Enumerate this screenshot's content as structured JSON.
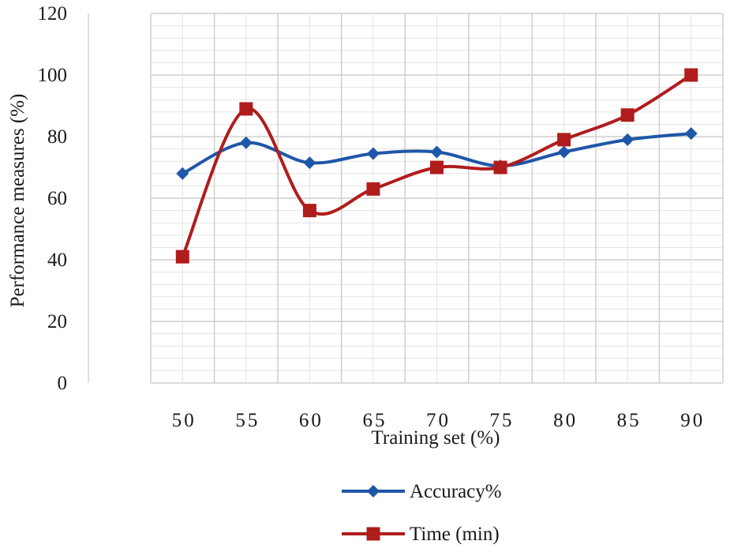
{
  "chart_data": {
    "type": "line",
    "title": "",
    "xlabel": "Training set (%)",
    "ylabel": "Performance measures (%)",
    "x": [
      50,
      55,
      60,
      65,
      70,
      75,
      80,
      85,
      90
    ],
    "ylim": [
      0,
      120
    ],
    "y_ticks": [
      0,
      20,
      40,
      60,
      80,
      100,
      120
    ],
    "grid": true,
    "legend_position": "bottom",
    "series": [
      {
        "name": "Accuracy%",
        "color": "#1f57a8",
        "marker": "diamond",
        "values": [
          68,
          78,
          71.5,
          74.5,
          75,
          70.5,
          75,
          79,
          81
        ]
      },
      {
        "name": "Time (min)",
        "color": "#b01c1c",
        "marker": "square",
        "values": [
          41,
          89,
          56,
          63,
          70,
          70,
          79,
          87,
          100
        ]
      }
    ]
  }
}
